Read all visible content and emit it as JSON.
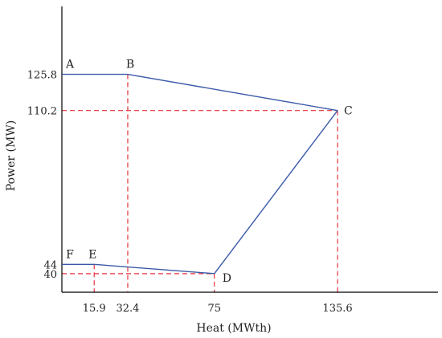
{
  "chart_data": {
    "type": "line",
    "title": "",
    "xlabel": "Heat (MWth)",
    "ylabel": "Power (MW)",
    "x_ticks": [
      15.9,
      32.4,
      75,
      135.6
    ],
    "y_ticks": [
      125.8,
      110.2,
      44,
      40
    ],
    "xlim": [
      0,
      185
    ],
    "ylim": [
      32,
      155
    ],
    "grid": false,
    "legend": "none",
    "points": [
      {
        "label": "A",
        "x": 0,
        "y": 125.8
      },
      {
        "label": "B",
        "x": 32.4,
        "y": 125.8
      },
      {
        "label": "C",
        "x": 135.6,
        "y": 110.2
      },
      {
        "label": "D",
        "x": 75,
        "y": 40
      },
      {
        "label": "E",
        "x": 15.9,
        "y": 44
      },
      {
        "label": "F",
        "x": 0,
        "y": 44
      }
    ],
    "outline_order": [
      "A",
      "B",
      "C",
      "D",
      "E",
      "F"
    ],
    "guides": [
      {
        "x": 32.4,
        "y": 125.8,
        "horizontal": false
      },
      {
        "x": 135.6,
        "y": 110.2,
        "horizontal": true
      },
      {
        "x": 15.9,
        "y": 44,
        "horizontal": false
      },
      {
        "x": 75,
        "y": 40,
        "horizontal": true
      }
    ],
    "colors": {
      "line": "#3a5aa8",
      "guide": "#e8313b",
      "axis": "#000000"
    }
  }
}
